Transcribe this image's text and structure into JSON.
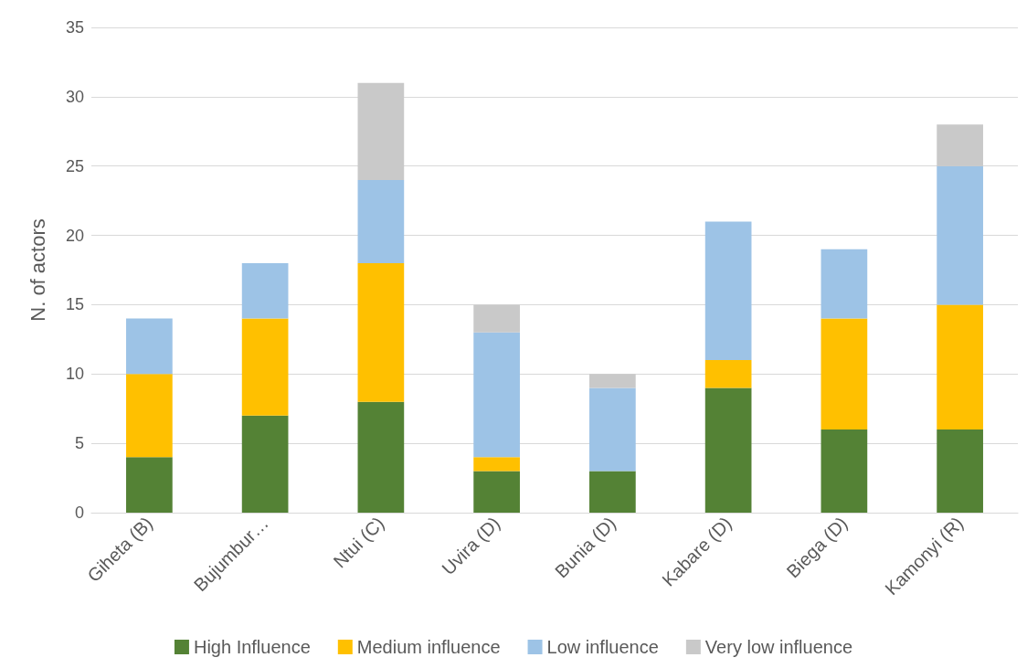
{
  "chart_data": {
    "type": "bar",
    "stacked": true,
    "ylabel": "N. of actors",
    "categories": [
      "Giheta (B)",
      "Bujumbur…",
      "Ntui (C)",
      "Uvira (D)",
      "Bunia (D)",
      "Kabare (D)",
      "Biega (D)",
      "Kamonyi (R)"
    ],
    "series": [
      {
        "name": "High Influence",
        "color": "#548235",
        "values": [
          4,
          7,
          8,
          3,
          3,
          9,
          6,
          6
        ]
      },
      {
        "name": "Medium influence",
        "color": "#ffc000",
        "values": [
          6,
          7,
          10,
          1,
          0,
          2,
          8,
          9
        ]
      },
      {
        "name": "Low influence",
        "color": "#9dc3e6",
        "values": [
          4,
          4,
          6,
          9,
          6,
          10,
          5,
          10
        ]
      },
      {
        "name": "Very low influence",
        "color": "#c9c9c9",
        "values": [
          0,
          0,
          7,
          2,
          1,
          0,
          0,
          3
        ]
      }
    ],
    "ylim": [
      0,
      35
    ],
    "yticks": [
      0,
      5,
      10,
      15,
      20,
      25,
      30,
      35
    ],
    "grid": "y",
    "legend": "bottom"
  }
}
